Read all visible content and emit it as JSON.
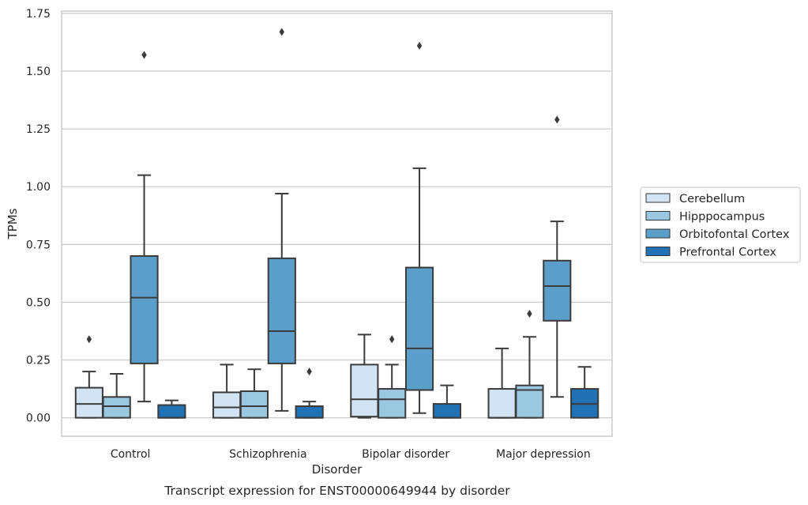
{
  "chart_data": {
    "type": "boxplot",
    "title": "",
    "caption": "Transcript expression for ENST00000649944 by disorder",
    "xlabel": "Disorder",
    "ylabel": "TPMs",
    "ylim": [
      -0.08,
      1.76
    ],
    "yticks": [
      0.0,
      0.25,
      0.5,
      0.75,
      1.0,
      1.25,
      1.5,
      1.75
    ],
    "ytick_labels": [
      "0.00",
      "0.25",
      "0.50",
      "0.75",
      "1.00",
      "1.25",
      "1.50",
      "1.75"
    ],
    "grid": "horizontal",
    "legend_position": "right",
    "categories": [
      "Control",
      "Schizophrenia",
      "Bipolar disorder",
      "Major depression"
    ],
    "series": [
      {
        "name": "Cerebellum",
        "color": "#d2e3f3",
        "boxes": [
          {
            "whisker_low": 0.0,
            "q1": 0.0,
            "median": 0.06,
            "q3": 0.13,
            "whisker_high": 0.2,
            "outliers": [
              0.34
            ]
          },
          {
            "whisker_low": 0.0,
            "q1": 0.0,
            "median": 0.045,
            "q3": 0.11,
            "whisker_high": 0.23,
            "outliers": []
          },
          {
            "whisker_low": 0.0,
            "q1": 0.005,
            "median": 0.08,
            "q3": 0.23,
            "whisker_high": 0.36,
            "outliers": []
          },
          {
            "whisker_low": 0.0,
            "q1": 0.0,
            "median": 0.0,
            "q3": 0.125,
            "whisker_high": 0.3,
            "outliers": []
          }
        ]
      },
      {
        "name": "Hipppocampus",
        "color": "#9ac8e0",
        "boxes": [
          {
            "whisker_low": 0.0,
            "q1": 0.0,
            "median": 0.05,
            "q3": 0.09,
            "whisker_high": 0.19,
            "outliers": []
          },
          {
            "whisker_low": 0.0,
            "q1": 0.0,
            "median": 0.05,
            "q3": 0.115,
            "whisker_high": 0.21,
            "outliers": []
          },
          {
            "whisker_low": 0.0,
            "q1": 0.0,
            "median": 0.08,
            "q3": 0.125,
            "whisker_high": 0.23,
            "outliers": [
              0.34
            ]
          },
          {
            "whisker_low": 0.0,
            "q1": 0.0,
            "median": 0.12,
            "q3": 0.14,
            "whisker_high": 0.35,
            "outliers": [
              0.45
            ]
          }
        ]
      },
      {
        "name": "Orbitofontal Cortex",
        "color": "#5a9ec9",
        "boxes": [
          {
            "whisker_low": 0.07,
            "q1": 0.235,
            "median": 0.52,
            "q3": 0.7,
            "whisker_high": 1.05,
            "outliers": [
              1.57
            ]
          },
          {
            "whisker_low": 0.03,
            "q1": 0.235,
            "median": 0.375,
            "q3": 0.69,
            "whisker_high": 0.97,
            "outliers": [
              1.67
            ]
          },
          {
            "whisker_low": 0.02,
            "q1": 0.12,
            "median": 0.3,
            "q3": 0.65,
            "whisker_high": 1.08,
            "outliers": [
              1.61
            ]
          },
          {
            "whisker_low": 0.09,
            "q1": 0.42,
            "median": 0.57,
            "q3": 0.68,
            "whisker_high": 0.85,
            "outliers": [
              1.29
            ]
          }
        ]
      },
      {
        "name": "Prefrontal Cortex",
        "color": "#2171b5",
        "boxes": [
          {
            "whisker_low": 0.0,
            "q1": 0.0,
            "median": 0.0,
            "q3": 0.055,
            "whisker_high": 0.075,
            "outliers": []
          },
          {
            "whisker_low": 0.0,
            "q1": 0.0,
            "median": 0.0,
            "q3": 0.05,
            "whisker_high": 0.07,
            "outliers": [
              0.2
            ]
          },
          {
            "whisker_low": 0.0,
            "q1": 0.0,
            "median": 0.0,
            "q3": 0.06,
            "whisker_high": 0.14,
            "outliers": []
          },
          {
            "whisker_low": 0.0,
            "q1": 0.0,
            "median": 0.06,
            "q3": 0.125,
            "whisker_high": 0.22,
            "outliers": []
          }
        ]
      }
    ]
  }
}
